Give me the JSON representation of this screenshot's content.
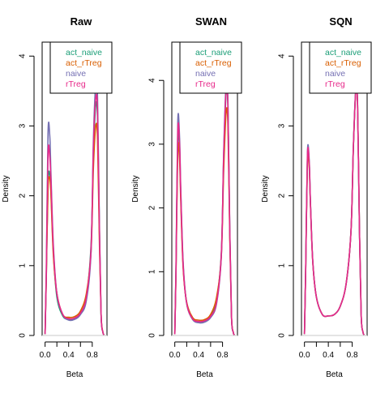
{
  "chart_data": [
    {
      "type": "line",
      "title": "Raw",
      "xlabel": "Beta",
      "ylabel": "Density",
      "xlim": [
        -0.05,
        1.05
      ],
      "ylim": [
        0,
        4.2
      ],
      "xticks": [
        0.0,
        0.4,
        0.8
      ],
      "xtick_labels": [
        "0.0",
        "0.4",
        "0.8"
      ],
      "yticks": [
        0,
        1,
        2,
        3,
        4
      ],
      "ytick_labels": [
        "0",
        "1",
        "2",
        "3",
        "4"
      ],
      "grid": false,
      "legend_position": "top-right",
      "series": [
        {
          "name": "act_naive",
          "color": "#1B9E77",
          "x": [
            0.0,
            0.02,
            0.05,
            0.08,
            0.1,
            0.14,
            0.2,
            0.3,
            0.4,
            0.5,
            0.6,
            0.7,
            0.78,
            0.82,
            0.86,
            0.89,
            0.92,
            0.95,
            0.98,
            1.0
          ],
          "y": [
            0.02,
            0.8,
            2.2,
            2.3,
            2.05,
            1.2,
            0.55,
            0.28,
            0.23,
            0.24,
            0.32,
            0.55,
            1.3,
            2.6,
            3.3,
            3.1,
            1.6,
            0.3,
            0.05,
            0.01
          ]
        },
        {
          "name": "act_rTreg",
          "color": "#D95F02",
          "x": [
            0.0,
            0.02,
            0.05,
            0.08,
            0.1,
            0.14,
            0.2,
            0.3,
            0.4,
            0.5,
            0.6,
            0.7,
            0.78,
            0.82,
            0.86,
            0.89,
            0.92,
            0.95,
            0.98,
            1.0
          ],
          "y": [
            0.02,
            0.8,
            2.1,
            2.25,
            2.0,
            1.15,
            0.6,
            0.3,
            0.26,
            0.27,
            0.35,
            0.6,
            1.2,
            2.4,
            3.0,
            2.8,
            1.4,
            0.3,
            0.05,
            0.01
          ]
        },
        {
          "name": "naive",
          "color": "#7570B3",
          "x": [
            0.0,
            0.02,
            0.05,
            0.08,
            0.1,
            0.14,
            0.2,
            0.3,
            0.4,
            0.5,
            0.6,
            0.7,
            0.78,
            0.82,
            0.86,
            0.89,
            0.92,
            0.95,
            0.98,
            1.0
          ],
          "y": [
            0.02,
            0.9,
            2.9,
            2.85,
            2.3,
            1.3,
            0.6,
            0.3,
            0.22,
            0.23,
            0.3,
            0.5,
            1.2,
            2.8,
            3.6,
            3.4,
            1.7,
            0.3,
            0.05,
            0.01
          ]
        },
        {
          "name": "rTreg",
          "color": "#E7298A",
          "x": [
            0.0,
            0.02,
            0.05,
            0.08,
            0.1,
            0.14,
            0.2,
            0.3,
            0.4,
            0.5,
            0.6,
            0.7,
            0.78,
            0.82,
            0.86,
            0.89,
            0.92,
            0.95,
            0.98,
            1.0
          ],
          "y": [
            0.02,
            0.85,
            2.6,
            2.55,
            2.2,
            1.25,
            0.6,
            0.3,
            0.24,
            0.25,
            0.32,
            0.55,
            1.25,
            2.7,
            3.4,
            3.2,
            1.6,
            0.3,
            0.05,
            0.01
          ]
        }
      ],
      "legend": [
        "act_naive",
        "act_rTreg",
        "naive",
        "rTreg"
      ]
    },
    {
      "type": "line",
      "title": "SWAN",
      "xlabel": "Beta",
      "ylabel": "Density",
      "xlim": [
        -0.05,
        1.05
      ],
      "ylim": [
        0,
        4.6
      ],
      "xticks": [
        0.0,
        0.4,
        0.8
      ],
      "xtick_labels": [
        "0.0",
        "0.4",
        "0.8"
      ],
      "yticks": [
        0,
        1,
        2,
        3,
        4
      ],
      "ytick_labels": [
        "0",
        "1",
        "2",
        "3",
        "4"
      ],
      "grid": false,
      "legend_position": "top-right",
      "series": [
        {
          "name": "act_naive",
          "color": "#1B9E77",
          "x": [
            0.0,
            0.02,
            0.05,
            0.08,
            0.1,
            0.14,
            0.2,
            0.3,
            0.4,
            0.5,
            0.6,
            0.7,
            0.78,
            0.82,
            0.86,
            0.89,
            0.92,
            0.95,
            0.98,
            1.0
          ],
          "y": [
            0.02,
            1.0,
            3.1,
            2.9,
            2.2,
            1.1,
            0.5,
            0.25,
            0.21,
            0.22,
            0.3,
            0.55,
            1.3,
            2.8,
            3.8,
            3.6,
            1.7,
            0.3,
            0.05,
            0.01
          ]
        },
        {
          "name": "act_rTreg",
          "color": "#D95F02",
          "x": [
            0.0,
            0.02,
            0.05,
            0.08,
            0.1,
            0.14,
            0.2,
            0.3,
            0.4,
            0.5,
            0.6,
            0.7,
            0.78,
            0.82,
            0.86,
            0.89,
            0.92,
            0.95,
            0.98,
            1.0
          ],
          "y": [
            0.02,
            0.95,
            2.9,
            2.75,
            2.1,
            1.05,
            0.52,
            0.28,
            0.24,
            0.25,
            0.33,
            0.6,
            1.25,
            2.6,
            3.5,
            3.3,
            1.6,
            0.3,
            0.05,
            0.01
          ]
        },
        {
          "name": "naive",
          "color": "#7570B3",
          "x": [
            0.0,
            0.02,
            0.05,
            0.08,
            0.1,
            0.14,
            0.2,
            0.3,
            0.4,
            0.5,
            0.6,
            0.7,
            0.78,
            0.82,
            0.86,
            0.89,
            0.92,
            0.95,
            0.98,
            1.0
          ],
          "y": [
            0.02,
            1.05,
            3.35,
            3.1,
            2.3,
            1.15,
            0.5,
            0.25,
            0.2,
            0.21,
            0.28,
            0.5,
            1.25,
            2.9,
            3.95,
            3.7,
            1.75,
            0.3,
            0.05,
            0.01
          ]
        },
        {
          "name": "rTreg",
          "color": "#E7298A",
          "x": [
            0.0,
            0.02,
            0.05,
            0.08,
            0.1,
            0.14,
            0.2,
            0.3,
            0.4,
            0.5,
            0.6,
            0.7,
            0.78,
            0.82,
            0.86,
            0.89,
            0.92,
            0.95,
            0.98,
            1.0
          ],
          "y": [
            0.02,
            1.0,
            3.2,
            3.0,
            2.25,
            1.1,
            0.5,
            0.26,
            0.22,
            0.23,
            0.3,
            0.52,
            1.28,
            2.85,
            3.85,
            3.6,
            1.7,
            0.3,
            0.05,
            0.01
          ]
        }
      ],
      "legend": [
        "act_naive",
        "act_rTreg",
        "naive",
        "rTreg"
      ]
    },
    {
      "type": "line",
      "title": "SQN",
      "xlabel": "Beta",
      "ylabel": "Density",
      "xlim": [
        -0.05,
        1.05
      ],
      "ylim": [
        0,
        4.2
      ],
      "xticks": [
        0.0,
        0.4,
        0.8
      ],
      "xtick_labels": [
        "0.0",
        "0.4",
        "0.8"
      ],
      "yticks": [
        0,
        1,
        2,
        3,
        4
      ],
      "ytick_labels": [
        "0",
        "1",
        "2",
        "3",
        "4"
      ],
      "grid": false,
      "legend_position": "top-right",
      "series": [
        {
          "name": "act_naive",
          "color": "#1B9E77",
          "x": [
            0.0,
            0.02,
            0.05,
            0.08,
            0.1,
            0.14,
            0.2,
            0.3,
            0.4,
            0.5,
            0.6,
            0.7,
            0.78,
            0.82,
            0.86,
            0.89,
            0.92,
            0.95,
            0.98,
            1.0
          ],
          "y": [
            0.02,
            0.9,
            2.55,
            2.45,
            1.9,
            1.05,
            0.55,
            0.3,
            0.28,
            0.3,
            0.42,
            0.75,
            1.5,
            2.7,
            3.5,
            3.3,
            1.6,
            0.3,
            0.05,
            0.01
          ]
        },
        {
          "name": "act_rTreg",
          "color": "#D95F02",
          "x": [
            0.0,
            0.02,
            0.05,
            0.08,
            0.1,
            0.14,
            0.2,
            0.3,
            0.4,
            0.5,
            0.6,
            0.7,
            0.78,
            0.82,
            0.86,
            0.89,
            0.92,
            0.95,
            0.98,
            1.0
          ],
          "y": [
            0.02,
            0.9,
            2.5,
            2.4,
            1.88,
            1.04,
            0.55,
            0.3,
            0.28,
            0.3,
            0.42,
            0.75,
            1.5,
            2.7,
            3.5,
            3.3,
            1.6,
            0.3,
            0.05,
            0.01
          ]
        },
        {
          "name": "naive",
          "color": "#7570B3",
          "x": [
            0.0,
            0.02,
            0.05,
            0.08,
            0.1,
            0.14,
            0.2,
            0.3,
            0.4,
            0.5,
            0.6,
            0.7,
            0.78,
            0.82,
            0.86,
            0.89,
            0.92,
            0.95,
            0.98,
            1.0
          ],
          "y": [
            0.02,
            0.92,
            2.62,
            2.5,
            1.92,
            1.06,
            0.55,
            0.3,
            0.28,
            0.3,
            0.42,
            0.75,
            1.5,
            2.72,
            3.52,
            3.3,
            1.6,
            0.3,
            0.05,
            0.01
          ]
        },
        {
          "name": "rTreg",
          "color": "#E7298A",
          "x": [
            0.0,
            0.02,
            0.05,
            0.08,
            0.1,
            0.14,
            0.2,
            0.3,
            0.4,
            0.5,
            0.6,
            0.7,
            0.78,
            0.82,
            0.86,
            0.89,
            0.92,
            0.95,
            0.98,
            1.0
          ],
          "y": [
            0.02,
            0.91,
            2.58,
            2.47,
            1.9,
            1.05,
            0.55,
            0.3,
            0.28,
            0.3,
            0.42,
            0.75,
            1.5,
            2.7,
            3.5,
            3.3,
            1.6,
            0.3,
            0.05,
            0.01
          ]
        }
      ],
      "legend": [
        "act_naive",
        "act_rTreg",
        "naive",
        "rTreg"
      ]
    }
  ]
}
